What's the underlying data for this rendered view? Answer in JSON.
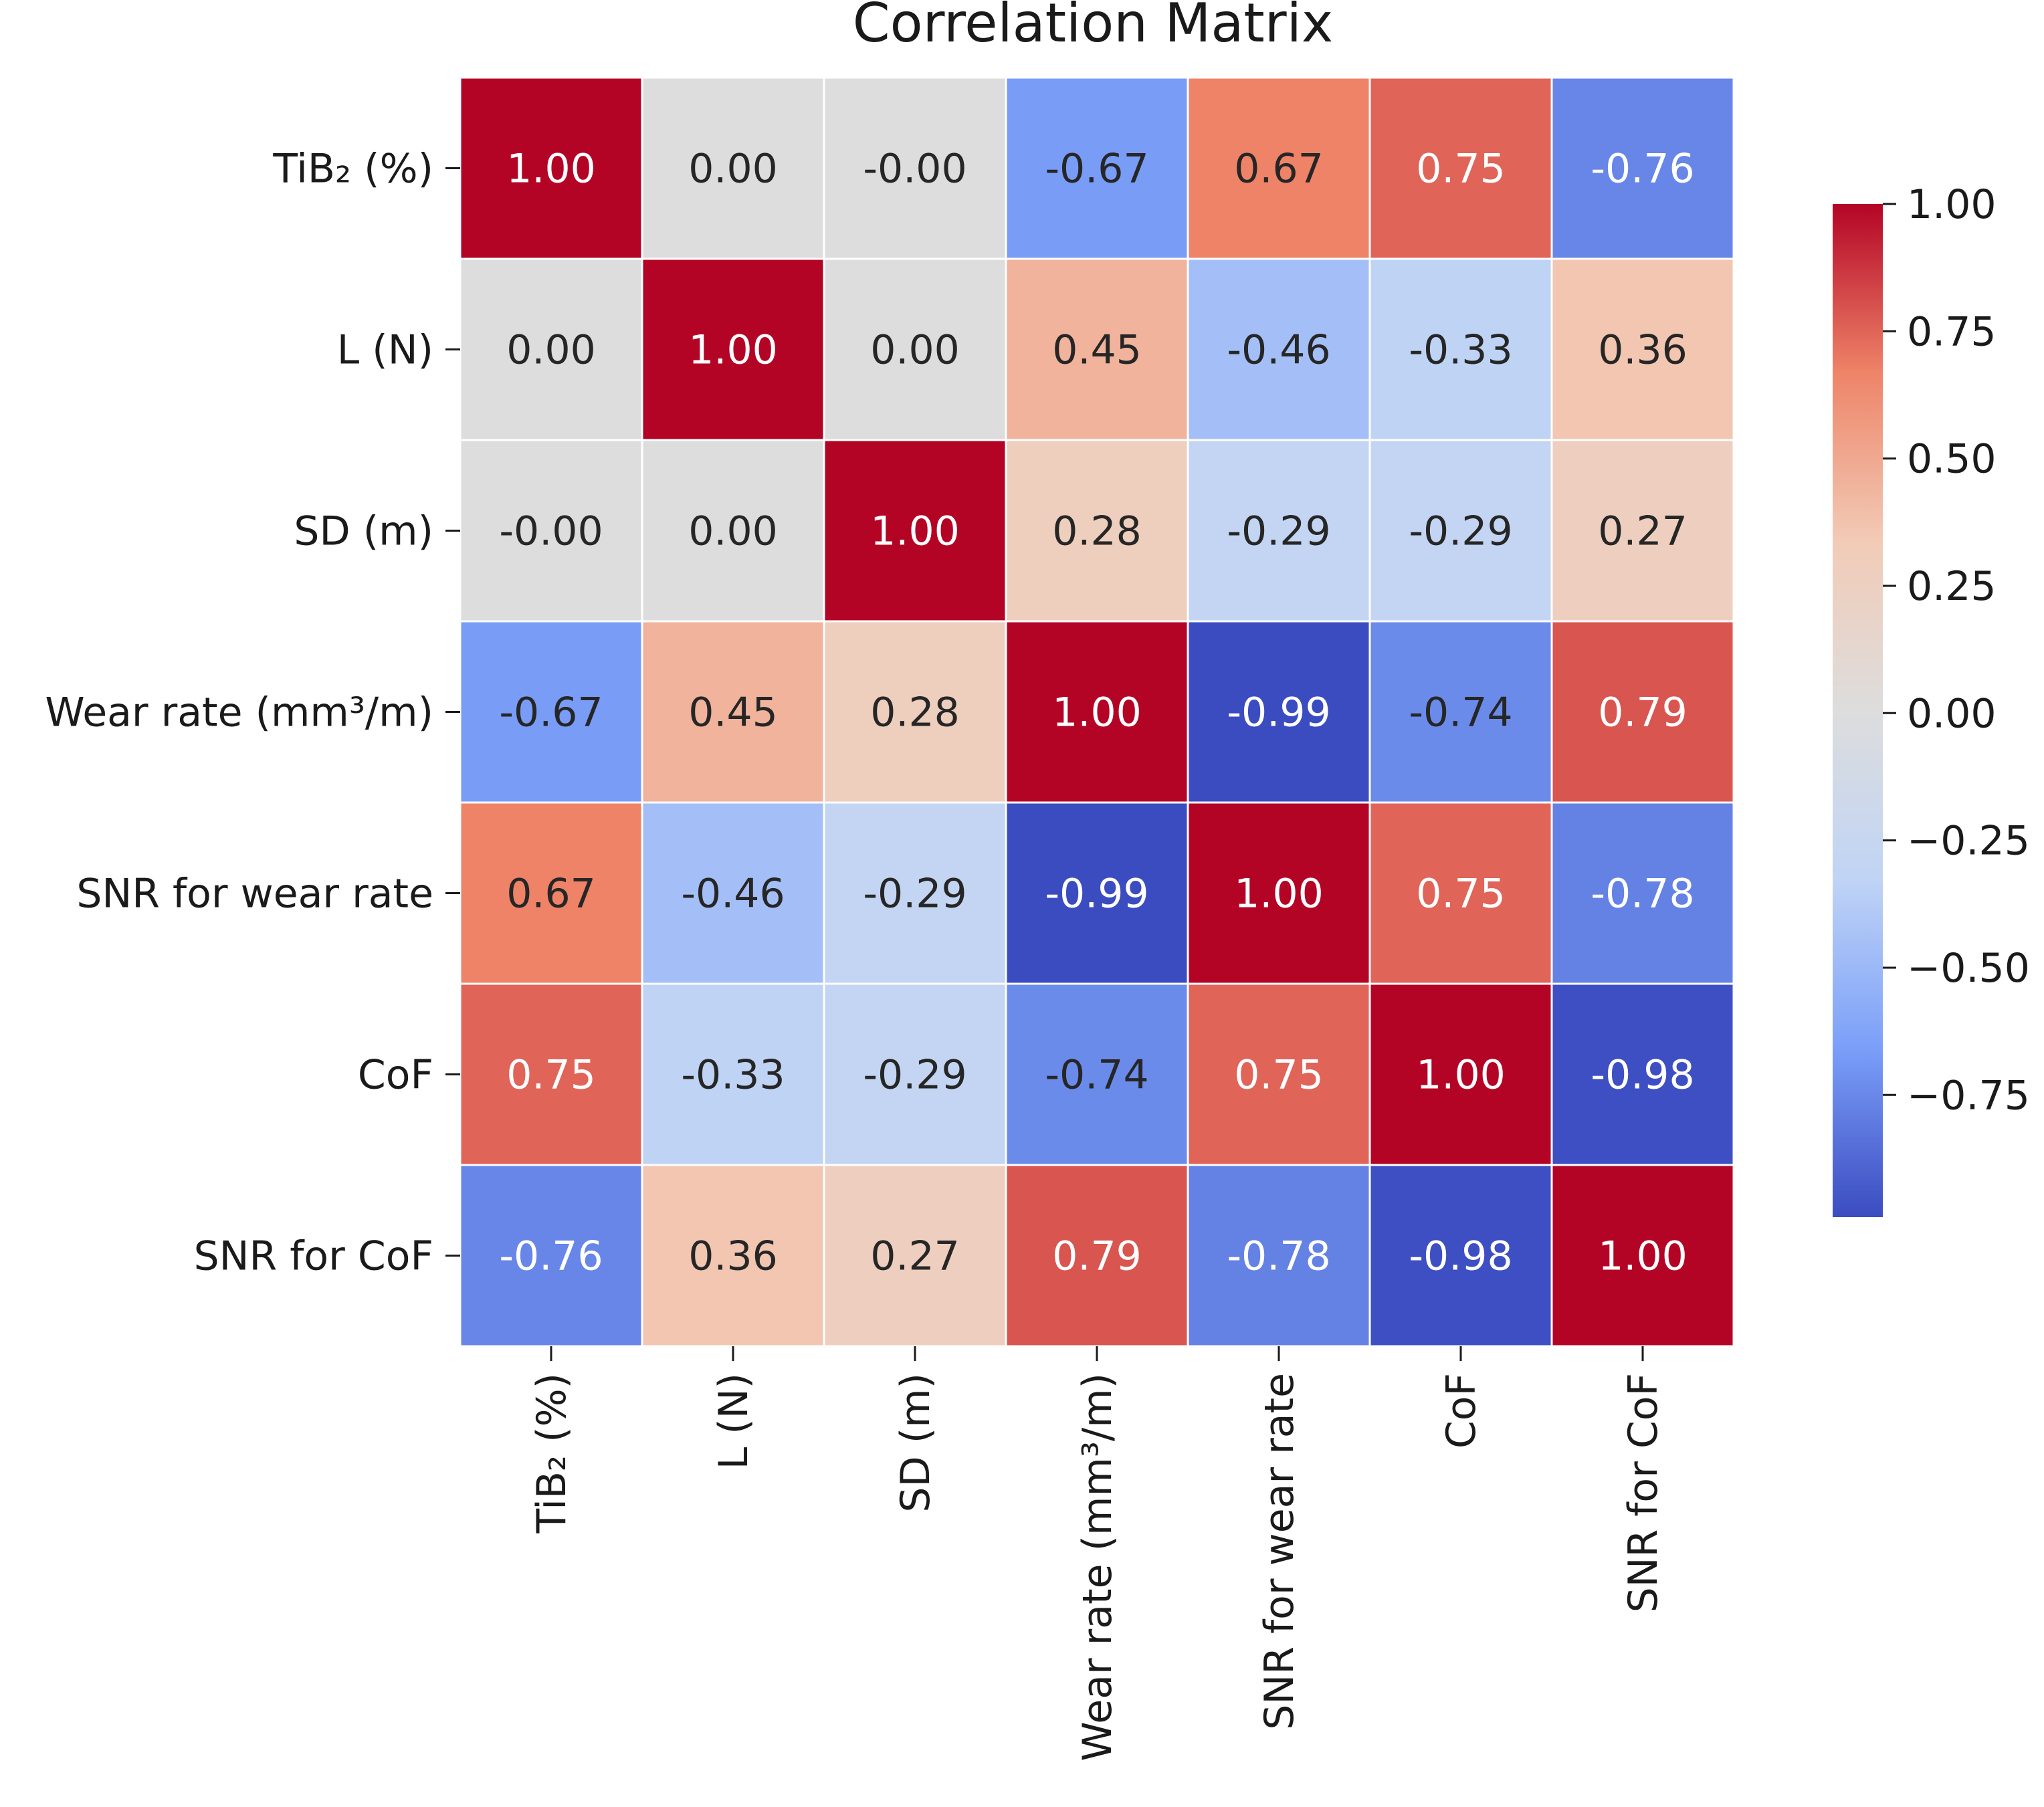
{
  "chart_data": {
    "type": "heatmap",
    "title": "Correlation Matrix",
    "row_labels": [
      "TiB₂ (%)",
      "L (N)",
      "SD (m)",
      "Wear rate (mm³/m)",
      "SNR for wear rate",
      "CoF",
      "SNR for CoF"
    ],
    "col_labels": [
      "TiB₂ (%)",
      "L (N)",
      "SD (m)",
      "Wear rate (mm³/m)",
      "SNR for wear rate",
      "CoF",
      "SNR for CoF"
    ],
    "values": [
      [
        1.0,
        0.0,
        -0.0,
        -0.67,
        0.67,
        0.75,
        -0.76
      ],
      [
        0.0,
        1.0,
        0.0,
        0.45,
        -0.46,
        -0.33,
        0.36
      ],
      [
        -0.0,
        0.0,
        1.0,
        0.28,
        -0.29,
        -0.29,
        0.27
      ],
      [
        -0.67,
        0.45,
        0.28,
        1.0,
        -0.99,
        -0.74,
        0.79
      ],
      [
        0.67,
        -0.46,
        -0.29,
        -0.99,
        1.0,
        0.75,
        -0.78
      ],
      [
        0.75,
        -0.33,
        -0.29,
        -0.74,
        0.75,
        1.0,
        -0.98
      ],
      [
        -0.76,
        0.36,
        0.27,
        0.79,
        -0.78,
        -0.98,
        1.0
      ]
    ],
    "value_labels": [
      [
        "1.00",
        "0.00",
        "-0.00",
        "-0.67",
        "0.67",
        "0.75",
        "-0.76"
      ],
      [
        "0.00",
        "1.00",
        "0.00",
        "0.45",
        "-0.46",
        "-0.33",
        "0.36"
      ],
      [
        "-0.00",
        "0.00",
        "1.00",
        "0.28",
        "-0.29",
        "-0.29",
        "0.27"
      ],
      [
        "-0.67",
        "0.45",
        "0.28",
        "1.00",
        "-0.99",
        "-0.74",
        "0.79"
      ],
      [
        "0.67",
        "-0.46",
        "-0.29",
        "-0.99",
        "1.00",
        "0.75",
        "-0.78"
      ],
      [
        "0.75",
        "-0.33",
        "-0.29",
        "-0.74",
        "0.75",
        "1.00",
        "-0.98"
      ],
      [
        "-0.76",
        "0.36",
        "0.27",
        "0.79",
        "-0.78",
        "-0.98",
        "1.00"
      ]
    ],
    "colorbar": {
      "ticks": [
        1.0,
        0.75,
        0.5,
        0.25,
        0.0,
        -0.25,
        -0.5,
        -0.75
      ],
      "tick_labels": [
        "1.00",
        "0.75",
        "0.50",
        "0.25",
        "0.00",
        "−0.25",
        "−0.50",
        "−0.75"
      ],
      "vmin": -0.99,
      "vmax": 1.0,
      "placement": "right"
    },
    "colormap": "coolwarm",
    "colormap_stops": [
      "#3b4cc0",
      "#7b9ff9",
      "#c0d4f5",
      "#dddddd",
      "#f2cbb7",
      "#ee8468",
      "#b40426"
    ],
    "grid": true
  }
}
